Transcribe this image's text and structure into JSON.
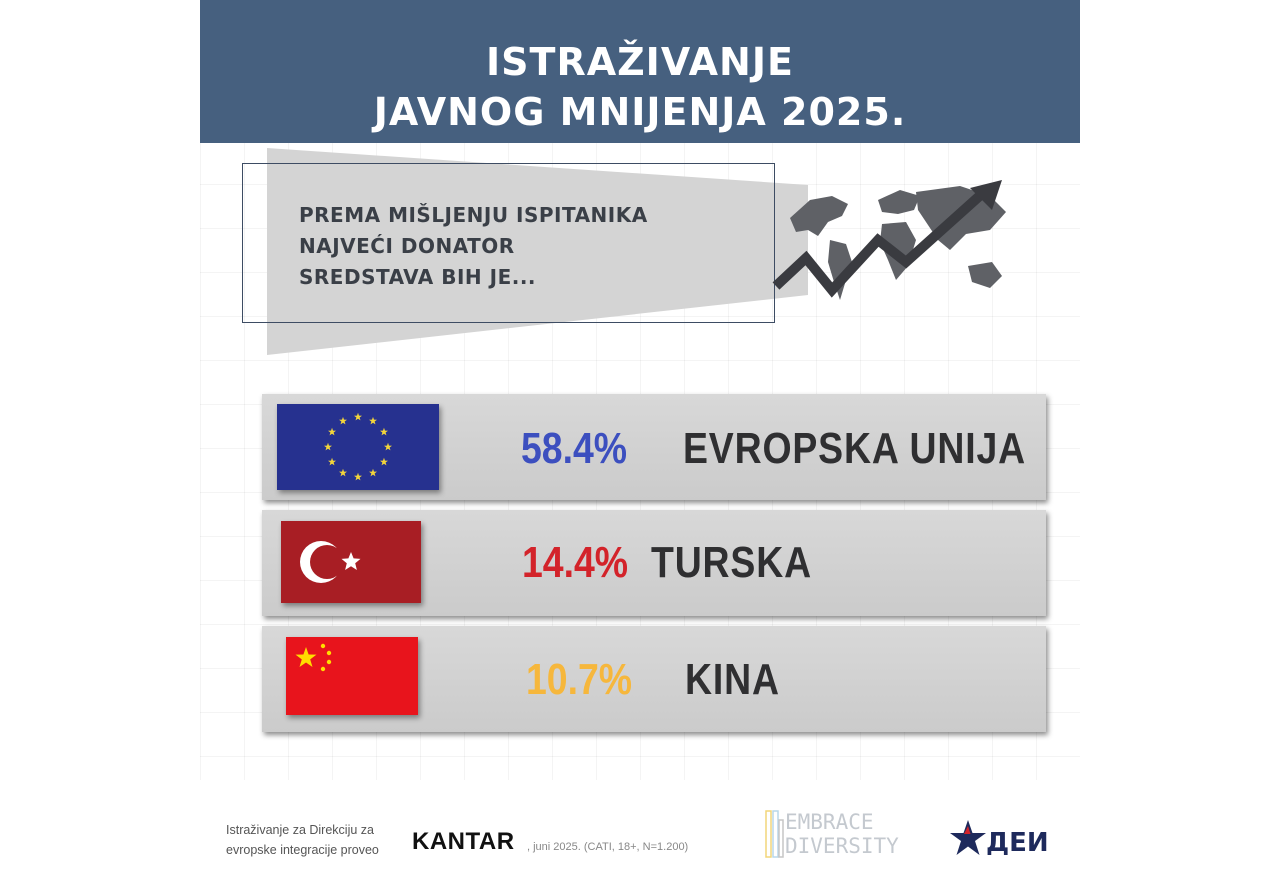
{
  "header": {
    "title_line1": "ISTRAŽIVANJE",
    "title_line2": "JAVNOG MNIJENJA 2025."
  },
  "question": {
    "line1": "PREMA MIŠLJENJU ISPITANIKA",
    "line2": "NAJVEĆI DONATOR",
    "line3": "SREDSTAVA BIH JE..."
  },
  "chart_data": {
    "type": "table",
    "title": "PREMA MIŠLJENJU ISPITANIKA NAJVEĆI DONATOR SREDSTAVA BIH JE...",
    "categories": [
      "EVROPSKA UNIJA",
      "TURSKA",
      "KINA"
    ],
    "values": [
      58.4,
      14.4,
      10.7
    ],
    "labels": [
      "58.4%",
      "14.4%",
      "10.7%"
    ],
    "colors": [
      "#3c4fbf",
      "#d3232a",
      "#f6b73c"
    ]
  },
  "footer": {
    "credit_line1": "Istraživanje za Direkciju za",
    "credit_line2": "evropske integracije proveo",
    "kantar": "KANTAR",
    "meta": ", juni 2025. (CATI, 18+, N=1.200)",
    "embrace_line1": "EMBRACE",
    "embrace_line2": "DIVERSITY",
    "den": "ДЕИ"
  },
  "icons": [
    "world-map-growth-arrow-icon",
    "eu-flag-icon",
    "turkey-flag-icon",
    "china-flag-icon",
    "embrace-diversity-logo",
    "dei-star-logo"
  ]
}
